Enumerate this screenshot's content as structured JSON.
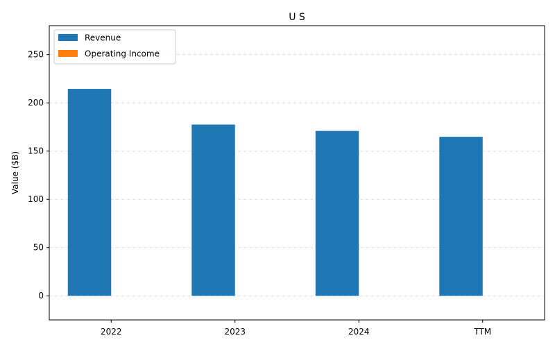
{
  "chart_data": {
    "type": "bar",
    "title": "U S",
    "xlabel": "",
    "ylabel": "Value ($B)",
    "categories": [
      "2022",
      "2023",
      "2024",
      "TTM"
    ],
    "series": [
      {
        "name": "Revenue",
        "values": [
          214.5,
          177.5,
          170.9,
          164.8
        ],
        "color": "#1f77b4"
      },
      {
        "name": "Operating Income",
        "values": [
          0,
          0,
          0,
          0
        ],
        "color": "#ff7f0e"
      }
    ],
    "ylim": [
      -25,
      280
    ],
    "yticks": [
      0,
      50,
      100,
      150,
      200,
      250
    ],
    "grid": "y-dashed",
    "legend_position": "top-left"
  }
}
